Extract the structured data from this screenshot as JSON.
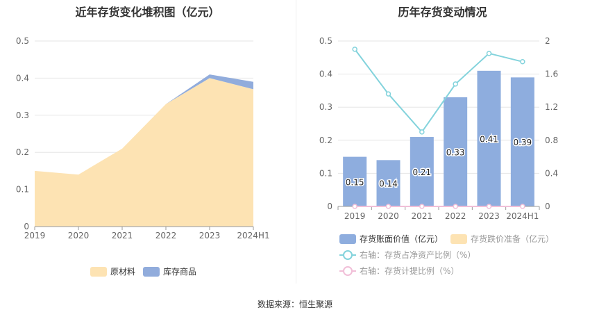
{
  "source_text": "数据来源：恒生聚源",
  "chart_data": [
    {
      "type": "area",
      "title": "近年存货变化堆积图（亿元）",
      "x": [
        "2019",
        "2020",
        "2021",
        "2022",
        "2023",
        "2024H1"
      ],
      "ylim": [
        0,
        0.5
      ],
      "yticks": [
        "0",
        "0.1",
        "0.2",
        "0.3",
        "0.4",
        "0.5"
      ],
      "stacked": true,
      "grid": true,
      "legend_position": "bottom",
      "series": [
        {
          "name": "原材料",
          "color": "#fde3b3",
          "values": [
            0.15,
            0.14,
            0.21,
            0.33,
            0.4,
            0.37
          ]
        },
        {
          "name": "库存商品",
          "color": "#91acdc",
          "values": [
            0.0,
            0.0,
            0.0,
            0.0,
            0.01,
            0.02
          ]
        }
      ]
    },
    {
      "type": "bar",
      "title": "历年存货变动情况",
      "categories": [
        "2019",
        "2020",
        "2021",
        "2022",
        "2023",
        "2024H1"
      ],
      "ylim": [
        0,
        0.5
      ],
      "yticks": [
        "0",
        "0.1",
        "0.2",
        "0.3",
        "0.4",
        "0.5"
      ],
      "y2lim": [
        0,
        2
      ],
      "y2ticks": [
        "0",
        "0.4",
        "0.8",
        "1.2",
        "1.6",
        "2"
      ],
      "grid": true,
      "legend_position": "bottom",
      "series": [
        {
          "name": "存货账面价值（亿元）",
          "kind": "bar",
          "axis": "left",
          "color": "#8eadde",
          "values": [
            0.15,
            0.14,
            0.21,
            0.33,
            0.41,
            0.39
          ],
          "labels": [
            "0.15",
            "0.14",
            "0.21",
            "0.33",
            "0.41",
            "0.39"
          ]
        },
        {
          "name": "存货跌价准备（亿元）",
          "kind": "bar",
          "axis": "left",
          "color": "#fde3b3",
          "values": [
            0,
            0,
            0,
            0,
            0,
            0
          ]
        },
        {
          "name": "右轴：存货占净资产比例（%）",
          "kind": "line",
          "axis": "right",
          "color": "#83d3dc",
          "values": [
            1.9,
            1.36,
            0.9,
            1.48,
            1.85,
            1.75
          ]
        },
        {
          "name": "右轴：存货计提比例（%）",
          "kind": "line",
          "axis": "right",
          "color": "#f1bfd8",
          "values": [
            0,
            0,
            0,
            0,
            0,
            0
          ]
        }
      ]
    }
  ]
}
